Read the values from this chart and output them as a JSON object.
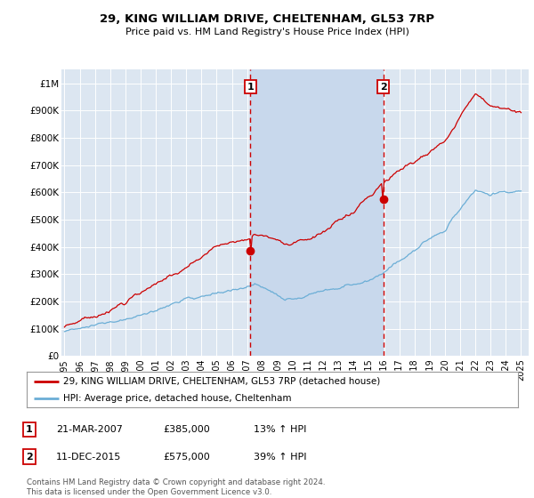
{
  "title": "29, KING WILLIAM DRIVE, CHELTENHAM, GL53 7RP",
  "subtitle": "Price paid vs. HM Land Registry's House Price Index (HPI)",
  "ylabel_ticks": [
    "£0",
    "£100K",
    "£200K",
    "£300K",
    "£400K",
    "£500K",
    "£600K",
    "£700K",
    "£800K",
    "£900K",
    "£1M"
  ],
  "ytick_values": [
    0,
    100000,
    200000,
    300000,
    400000,
    500000,
    600000,
    700000,
    800000,
    900000,
    1000000
  ],
  "ylim": [
    0,
    1050000
  ],
  "xlim_start": 1994.8,
  "xlim_end": 2025.5,
  "background_color": "#ffffff",
  "plot_bg_color": "#dce6f1",
  "highlight_color": "#c8d8ec",
  "grid_color": "#ffffff",
  "transaction1": {
    "date": 2007.22,
    "price": 385000,
    "label": "1"
  },
  "transaction2": {
    "date": 2015.95,
    "price": 575000,
    "label": "2"
  },
  "legend_line1": "29, KING WILLIAM DRIVE, CHELTENHAM, GL53 7RP (detached house)",
  "legend_line2": "HPI: Average price, detached house, Cheltenham",
  "table_rows": [
    {
      "num": "1",
      "date": "21-MAR-2007",
      "price": "£385,000",
      "hpi": "13% ↑ HPI"
    },
    {
      "num": "2",
      "date": "11-DEC-2015",
      "price": "£575,000",
      "hpi": "39% ↑ HPI"
    }
  ],
  "footer": "Contains HM Land Registry data © Crown copyright and database right 2024.\nThis data is licensed under the Open Government Licence v3.0.",
  "hpi_color": "#6baed6",
  "price_color": "#cc0000",
  "marker_color": "#cc0000",
  "vline_color": "#cc0000",
  "xtick_years": [
    1995,
    1996,
    1997,
    1998,
    1999,
    2000,
    2001,
    2002,
    2003,
    2004,
    2005,
    2006,
    2007,
    2008,
    2009,
    2010,
    2011,
    2012,
    2013,
    2014,
    2015,
    2016,
    2017,
    2018,
    2019,
    2020,
    2021,
    2022,
    2023,
    2024,
    2025
  ]
}
